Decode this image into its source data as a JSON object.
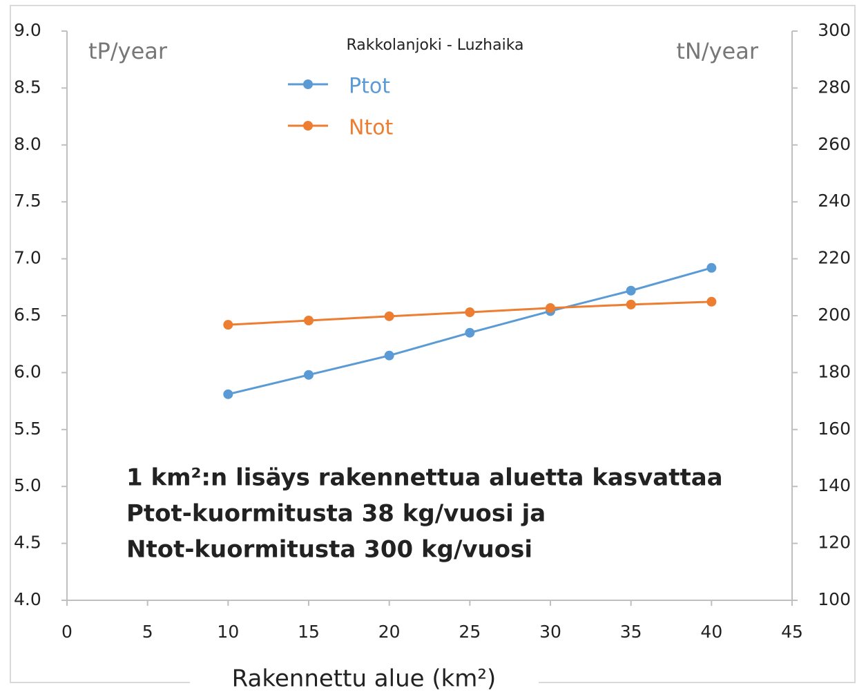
{
  "chart_data": {
    "type": "line",
    "title": "Rakkolanjoki - Luzhaika",
    "y_label": "tP/year",
    "y2_label": "tN/year",
    "x_label": "Rakennettu alue (km²)",
    "annotation": [
      "1 km²:n lisäys rakennettua aluetta kasvattaa",
      "Ptot-kuormitusta 38 kg/vuosi ja",
      "Ntot-kuormitusta 300 kg/vuosi"
    ],
    "x": [
      10,
      15,
      20,
      25,
      30,
      35,
      40
    ],
    "series": [
      {
        "name": "Ptot",
        "color": "#5b9bd5",
        "values": [
          5.81,
          5.98,
          6.15,
          6.35,
          6.54,
          6.72,
          6.92
        ]
      },
      {
        "name": "Ntot",
        "color": "#ed7d31",
        "axis": "y2",
        "values": [
          196.8,
          198.3,
          199.8,
          201.2,
          202.7,
          203.9,
          204.9
        ]
      }
    ],
    "xlim": [
      0,
      45
    ],
    "xticks": [
      0,
      5,
      10,
      15,
      20,
      25,
      30,
      35,
      40,
      45
    ],
    "ylim": [
      4,
      9
    ],
    "yticks": [
      {
        "value": 4,
        "label": "4.0"
      },
      4.5,
      {
        "value": 5,
        "label": "5.0"
      },
      5.5,
      {
        "value": 6,
        "label": "6.0"
      },
      6.5,
      {
        "value": 7,
        "label": "7.0"
      },
      7.5,
      {
        "value": 8,
        "label": "8.0"
      },
      8.5,
      {
        "value": 9,
        "label": "9.0"
      }
    ],
    "y2lim": [
      100,
      300
    ],
    "y2ticks": [
      100,
      120,
      140,
      160,
      180,
      200,
      220,
      240,
      260,
      280,
      300
    ],
    "grid": false
  }
}
